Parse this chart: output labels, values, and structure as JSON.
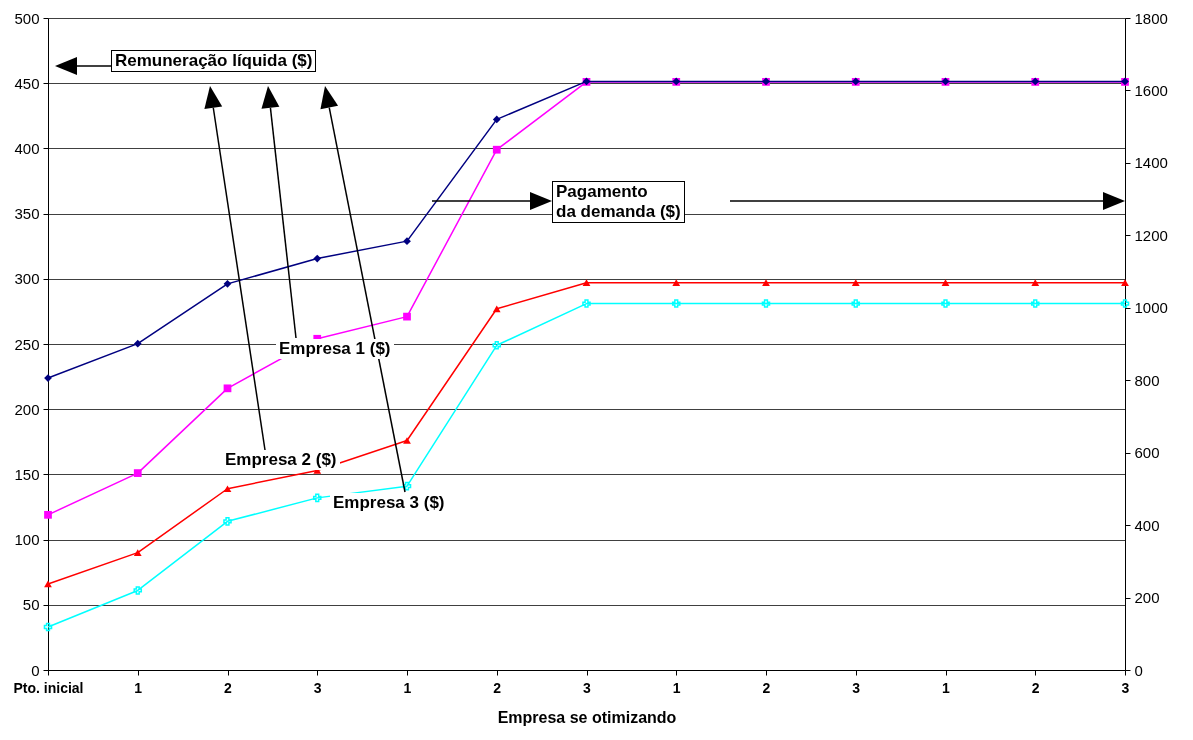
{
  "chart_data": {
    "type": "line",
    "xlabel": "Empresa se otimizando",
    "categories": [
      "Pto. inicial",
      "1",
      "2",
      "3",
      "1",
      "2",
      "3",
      "1",
      "2",
      "3",
      "1",
      "2",
      "3"
    ],
    "series": [
      {
        "name": "Empresa 1 ($)",
        "color": "#ff00ff",
        "marker": "square",
        "values": [
          119,
          151,
          216,
          254,
          271,
          399,
          451,
          451,
          451,
          451,
          451,
          451,
          451
        ]
      },
      {
        "name": "Empresa 2 ($)",
        "color": "#ff0000",
        "marker": "triangle",
        "values": [
          66,
          90,
          139,
          153,
          176,
          277,
          297,
          297,
          297,
          297,
          297,
          297,
          297
        ]
      },
      {
        "name": "Empresa 3 ($)",
        "color": "#00ffff",
        "marker": "cross",
        "values": [
          33,
          61,
          114,
          132,
          141,
          249,
          281,
          281,
          281,
          281,
          281,
          281,
          281
        ]
      },
      {
        "color": "#000080",
        "marker": "diamond",
        "axis": "y2",
        "values": [
          806,
          901,
          1066,
          1136,
          1184,
          1520,
          1625,
          1625,
          1625,
          1625,
          1625,
          1625,
          1625
        ]
      }
    ],
    "ylim": [
      0,
      500
    ],
    "yticks": [
      0,
      50,
      100,
      150,
      200,
      250,
      300,
      350,
      400,
      450,
      500
    ],
    "y2lim": [
      0,
      1800
    ],
    "y2ticks": [
      0,
      200,
      400,
      600,
      800,
      1000,
      1200,
      1400,
      1600,
      1800
    ],
    "annotations": [
      "Remuneração líquida ($)",
      "Pagamento\nda demanda ($)"
    ],
    "grid": "y",
    "legend": false
  }
}
